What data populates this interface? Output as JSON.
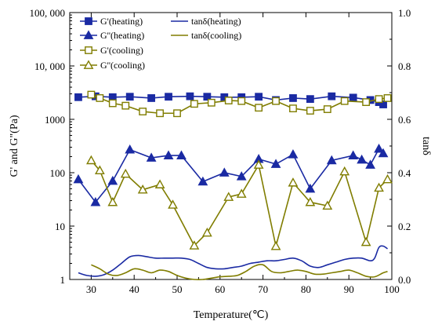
{
  "chart_data": {
    "type": "line",
    "title": "",
    "xlabel": "Temperature(℃)",
    "ylabel_left": "G' and G\"(Pa)",
    "ylabel_right": "tanδ",
    "xlim": [
      25,
      100
    ],
    "ylim_left": [
      1,
      100000
    ],
    "ylim_right": [
      0.0,
      1.0
    ],
    "y_left_scale": "log",
    "grid": false,
    "legend_placement": "top-left",
    "x_ticks": [
      30,
      40,
      50,
      60,
      70,
      80,
      90,
      100
    ],
    "x_tick_labels": [
      "30",
      "40",
      "50",
      "60",
      "70",
      "80",
      "90",
      "100"
    ],
    "y_left_ticks": [
      1,
      10,
      100,
      1000,
      10000,
      100000
    ],
    "y_left_tick_labels": [
      "1",
      "10",
      "100",
      "1000",
      "10, 000",
      "100, 000"
    ],
    "y_right_ticks": [
      0.0,
      0.2,
      0.4,
      0.6,
      0.8,
      1.0
    ],
    "y_right_tick_labels": [
      "0.0",
      "0.2",
      "0.4",
      "0.6",
      "0.8",
      "1.0"
    ],
    "series": [
      {
        "name": "G'(heating)",
        "axis": "left",
        "color": "#1a2aa3",
        "marker": "square-filled",
        "x": [
          27,
          31,
          35,
          39,
          44,
          48,
          53,
          57,
          61,
          65,
          69,
          73,
          77,
          81,
          86,
          91,
          95,
          97,
          98
        ],
        "y": [
          2600,
          2700,
          2600,
          2650,
          2500,
          2650,
          2700,
          2650,
          2600,
          2600,
          2650,
          2300,
          2500,
          2400,
          2700,
          2550,
          2300,
          2100,
          1900
        ]
      },
      {
        "name": "G''(heating)",
        "axis": "left",
        "color": "#1a2aa3",
        "marker": "triangle-filled",
        "x": [
          27,
          31,
          35,
          39,
          44,
          48,
          51,
          56,
          61,
          65,
          69,
          73,
          77,
          81,
          86,
          91,
          93,
          95,
          97,
          98
        ],
        "y": [
          75,
          28,
          70,
          270,
          190,
          210,
          210,
          68,
          100,
          85,
          180,
          145,
          220,
          50,
          170,
          210,
          175,
          140,
          280,
          230
        ]
      },
      {
        "name": "G'(cooling)",
        "axis": "left",
        "color": "#807d00",
        "marker": "square-open",
        "x": [
          30,
          32,
          35,
          38,
          42,
          46,
          50,
          54,
          58,
          62,
          65,
          69,
          73,
          77,
          81,
          85,
          89,
          94,
          97,
          99
        ],
        "y": [
          2900,
          2500,
          2000,
          1800,
          1400,
          1300,
          1300,
          1950,
          2050,
          2250,
          2200,
          1650,
          2200,
          1600,
          1450,
          1550,
          2200,
          2100,
          2400,
          2500
        ]
      },
      {
        "name": "G''(cooling)",
        "axis": "left",
        "color": "#807d00",
        "marker": "triangle-open",
        "x": [
          30,
          32,
          35,
          38,
          42,
          46,
          49,
          54,
          57,
          62,
          65,
          69,
          73,
          77,
          81,
          85,
          89,
          94,
          97,
          99
        ],
        "y": [
          170,
          110,
          28,
          95,
          48,
          60,
          25,
          4.3,
          7.5,
          35,
          40,
          140,
          4.2,
          65,
          28,
          24,
          105,
          5,
          52,
          75
        ]
      },
      {
        "name": "tanδ(heating)",
        "axis": "right",
        "color": "#1a2aa3",
        "marker": "none",
        "x": [
          27,
          29,
          31,
          33,
          35,
          37,
          39,
          41,
          43,
          45,
          47,
          49,
          51,
          53,
          55,
          57,
          59,
          61,
          63,
          65,
          67,
          69,
          71,
          73,
          75,
          77,
          79,
          81,
          83,
          85,
          87,
          89,
          91,
          93,
          95,
          96,
          97,
          98,
          99
        ],
        "y": [
          0.025,
          0.015,
          0.012,
          0.018,
          0.035,
          0.06,
          0.085,
          0.09,
          0.085,
          0.08,
          0.08,
          0.08,
          0.08,
          0.075,
          0.06,
          0.045,
          0.04,
          0.04,
          0.045,
          0.05,
          0.06,
          0.065,
          0.07,
          0.07,
          0.075,
          0.08,
          0.07,
          0.05,
          0.045,
          0.055,
          0.065,
          0.075,
          0.08,
          0.08,
          0.07,
          0.08,
          0.12,
          0.125,
          0.115
        ]
      },
      {
        "name": "tanδ(cooling)",
        "axis": "right",
        "color": "#807d00",
        "marker": "none",
        "x": [
          30,
          32,
          34,
          36,
          38,
          40,
          42,
          44,
          46,
          48,
          50,
          52,
          54,
          56,
          58,
          60,
          62,
          64,
          66,
          68,
          70,
          72,
          74,
          76,
          78,
          80,
          82,
          84,
          86,
          88,
          90,
          92,
          94,
          96,
          98,
          99
        ],
        "y": [
          0.055,
          0.04,
          0.02,
          0.015,
          0.025,
          0.04,
          0.035,
          0.025,
          0.035,
          0.03,
          0.015,
          0.005,
          0.0,
          0.0,
          0.005,
          0.01,
          0.012,
          0.015,
          0.03,
          0.05,
          0.055,
          0.03,
          0.025,
          0.03,
          0.035,
          0.03,
          0.02,
          0.02,
          0.025,
          0.03,
          0.035,
          0.025,
          0.012,
          0.01,
          0.025,
          0.03
        ]
      }
    ]
  }
}
